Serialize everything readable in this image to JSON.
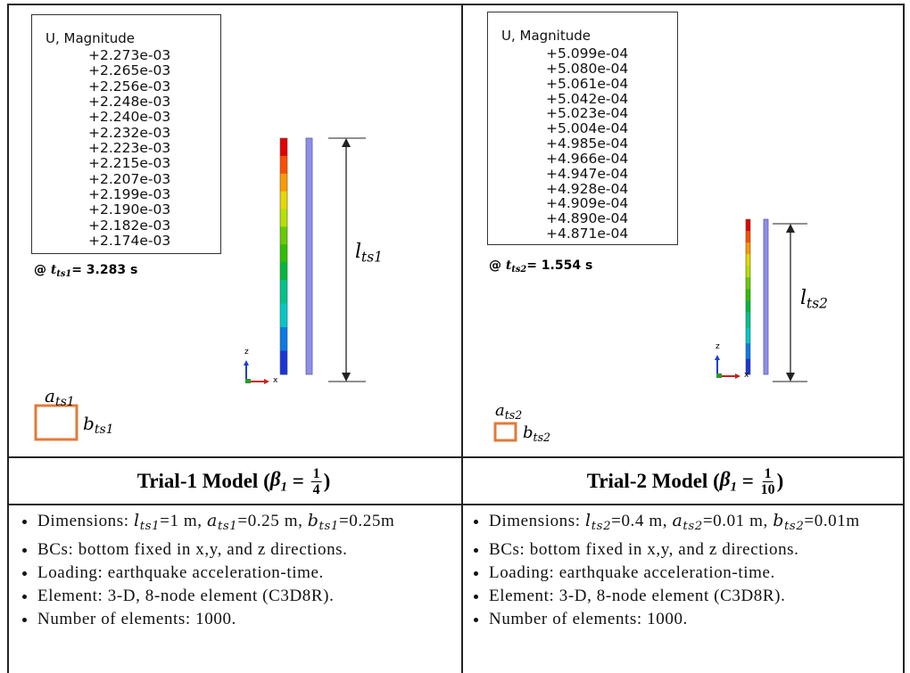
{
  "panels": [
    {
      "legend": {
        "title": "U, Magnitude",
        "values": [
          "+2.273e-03",
          "+2.265e-03",
          "+2.256e-03",
          "+2.248e-03",
          "+2.240e-03",
          "+2.232e-03",
          "+2.223e-03",
          "+2.215e-03",
          "+2.207e-03",
          "+2.199e-03",
          "+2.190e-03",
          "+2.182e-03",
          "+2.174e-03"
        ]
      },
      "time": [
        {
          "text": "@ "
        },
        {
          "text": "t",
          "sub": "ts1"
        },
        {
          "text": "= 3.283 s"
        }
      ],
      "length_label": {
        "text": "l",
        "sub": "ts1"
      },
      "width_label": {
        "text": "a",
        "sub": "ts1"
      },
      "depth_label": {
        "text": "b",
        "sub": "ts1"
      },
      "axis_labels": [
        "z",
        "x"
      ],
      "title": {
        "prefix": "Trial-1 Model (",
        "symbol": "β",
        "sub": "1",
        "eq": " = ",
        "num": "1",
        "den": "4",
        "suffix": ")"
      },
      "bullets": [
        [
          {
            "text": "Dimensions: "
          },
          {
            "text": "l",
            "sub": "ts1"
          },
          {
            "text": "=1 m, "
          },
          {
            "text": "a",
            "sub": "ts1"
          },
          {
            "text": "=0.25 m, "
          },
          {
            "text": "b",
            "sub": "ts1"
          },
          {
            "text": "=0.25m"
          }
        ],
        [
          {
            "text": "BCs: bottom fixed in x,y, and z directions."
          }
        ],
        [
          {
            "text": "Loading: earthquake acceleration-time."
          }
        ],
        [
          {
            "text": "Element: 3-D, 8-node element (C3D8R)."
          }
        ],
        [
          {
            "text": "Number of elements: 1000."
          }
        ]
      ]
    },
    {
      "legend": {
        "title": "U, Magnitude",
        "values": [
          "+5.099e-04",
          "+5.080e-04",
          "+5.061e-04",
          "+5.042e-04",
          "+5.023e-04",
          "+5.004e-04",
          "+4.985e-04",
          "+4.966e-04",
          "+4.947e-04",
          "+4.928e-04",
          "+4.909e-04",
          "+4.890e-04",
          "+4.871e-04"
        ]
      },
      "time": [
        {
          "text": "@ "
        },
        {
          "text": "t",
          "sub": "ts2"
        },
        {
          "text": "= 1.554 s"
        }
      ],
      "length_label": {
        "text": "l",
        "sub": "ts2"
      },
      "width_label": {
        "text": "a",
        "sub": "ts2"
      },
      "depth_label": {
        "text": "b",
        "sub": "ts2"
      },
      "axis_labels": [
        "z",
        "x"
      ],
      "title": {
        "prefix": "Trial-2 Model (",
        "symbol": "β",
        "sub": "1",
        "eq": " = ",
        "num": "1",
        "den": "10",
        "suffix": ")"
      },
      "bullets": [
        [
          {
            "text": "Dimensions: "
          },
          {
            "text": "l",
            "sub": "ts2"
          },
          {
            "text": "=0.4 m, "
          },
          {
            "text": "a",
            "sub": "ts2"
          },
          {
            "text": "=0.01 m, "
          },
          {
            "text": "b",
            "sub": "ts2"
          },
          {
            "text": "=0.01m"
          }
        ],
        [
          {
            "text": "BCs: bottom fixed in x,y, and z directions."
          }
        ],
        [
          {
            "text": "Loading: earthquake acceleration-time."
          }
        ],
        [
          {
            "text": "Element: 3-D, 8-node element (C3D8R)."
          }
        ],
        [
          {
            "text": "Number of elements: 1000."
          }
        ]
      ]
    }
  ]
}
